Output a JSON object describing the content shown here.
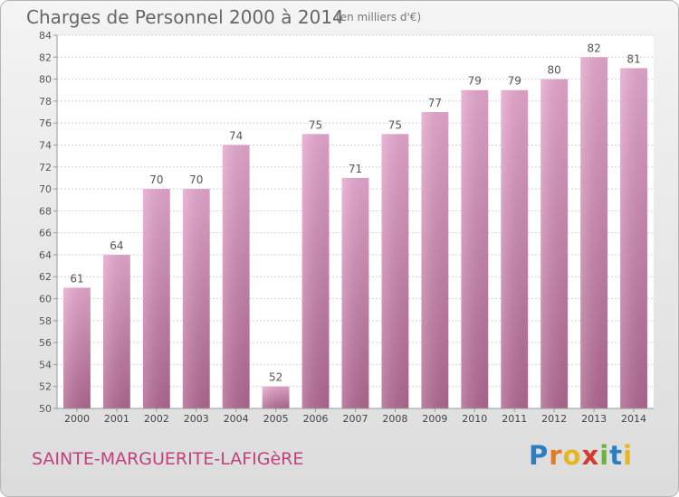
{
  "title": "Charges de Personnel 2000 à 2014",
  "subtitle": "(en milliers d'€)",
  "commune": "SAINTE-MARGUERITE-LAFIGèRE",
  "logo": {
    "text": "Proxiti",
    "letters": [
      "P",
      "r",
      "o",
      "x",
      "i",
      "t",
      "i"
    ],
    "colors": [
      "#2a7fc1",
      "#e87a1e",
      "#e8b51e",
      "#d63a2b",
      "#6bb534",
      "#2a7fc1",
      "#e8b51e"
    ]
  },
  "chart_data": {
    "type": "bar",
    "title": "Charges de Personnel 2000 à 2014",
    "subtitle": "(en milliers d'€)",
    "categories": [
      "2000",
      "2001",
      "2002",
      "2003",
      "2004",
      "2005",
      "2006",
      "2007",
      "2008",
      "2009",
      "2010",
      "2011",
      "2012",
      "2013",
      "2014"
    ],
    "values": [
      61,
      64,
      70,
      70,
      74,
      52,
      75,
      71,
      75,
      77,
      79,
      79,
      80,
      82,
      81
    ],
    "data_labels": [
      "61",
      "64",
      "70",
      "70",
      "74",
      "52",
      "75",
      "71",
      "75",
      "77",
      "79",
      "79",
      "80",
      "82",
      "81"
    ],
    "ylim": [
      50,
      84
    ],
    "yticks": [
      "50",
      "52",
      "54",
      "56",
      "58",
      "60",
      "62",
      "64",
      "66",
      "68",
      "70",
      "72",
      "74",
      "76",
      "78",
      "80",
      "82",
      "84"
    ],
    "grid": true,
    "bar_color_top": "#e6a8cf",
    "bar_color_bottom": "#b06890",
    "xlabel": "",
    "ylabel": ""
  }
}
